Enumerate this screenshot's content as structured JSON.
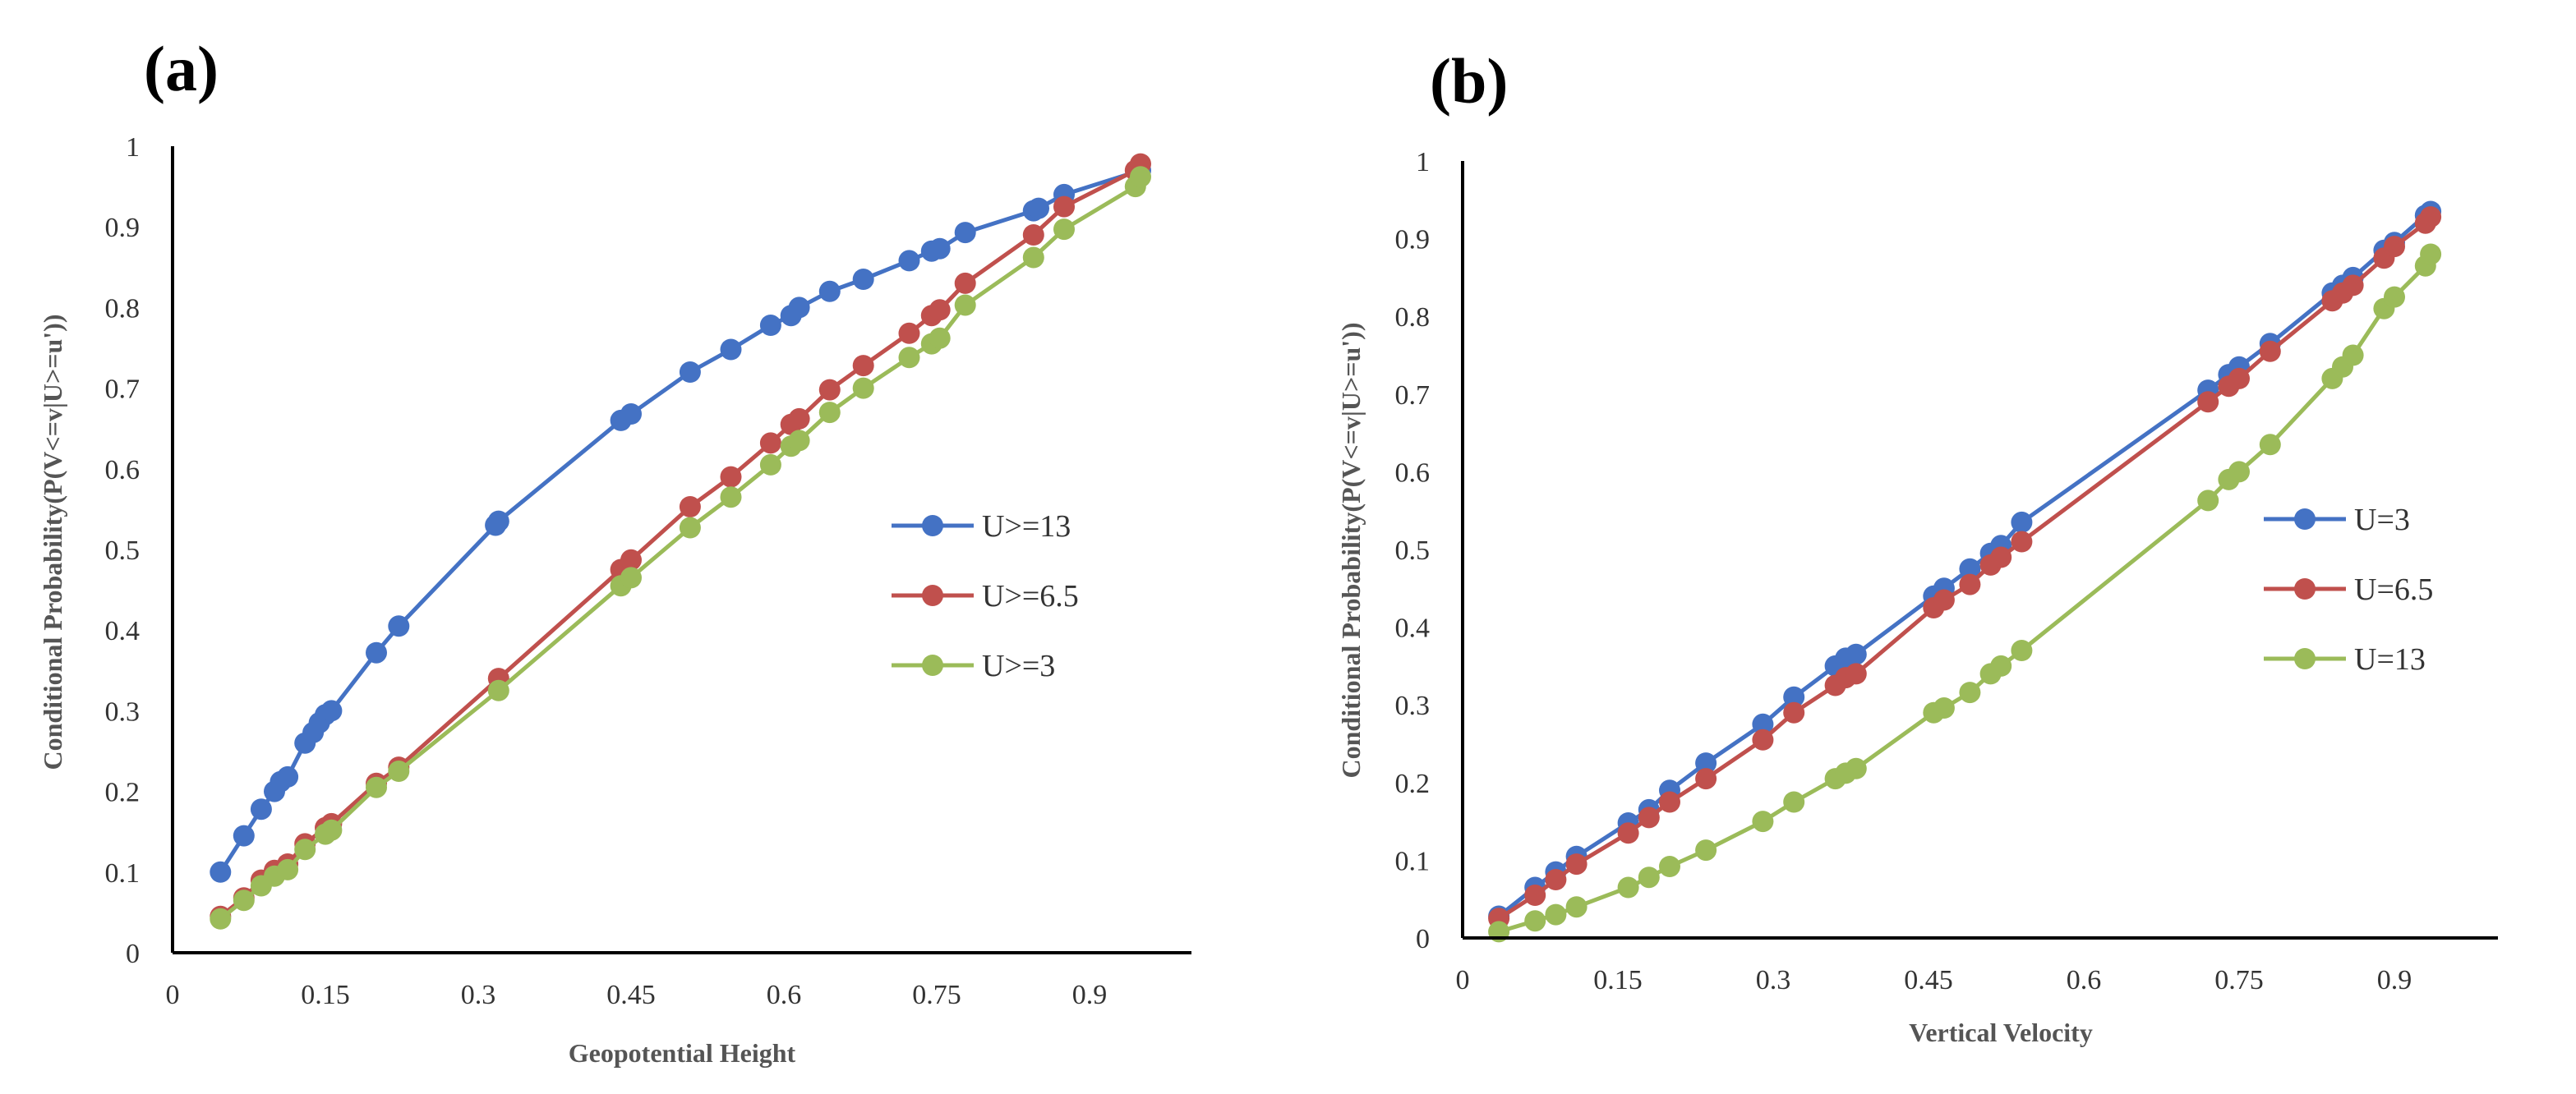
{
  "figure": {
    "panels": [
      "(a)",
      "(b)"
    ]
  },
  "chart_data": [
    {
      "type": "line",
      "panel_label": "(a)",
      "title": "",
      "xlabel": "Geopotential Height",
      "ylabel": "Conditional Probability(P(V<=v|U>=u'))",
      "xlim": [
        0,
        1.0
      ],
      "ylim": [
        0,
        1
      ],
      "xticks": [
        0,
        0.15,
        0.3,
        0.45,
        0.6,
        0.75,
        0.9
      ],
      "xtick_labels": [
        "0",
        "0.15",
        "0.3",
        "0.45",
        "0.6",
        "0.75",
        "0.9"
      ],
      "yticks": [
        0,
        0.1,
        0.2,
        0.3,
        0.4,
        0.5,
        0.6,
        0.7,
        0.8,
        0.9,
        1
      ],
      "ytick_labels": [
        "0",
        "0.1",
        "0.2",
        "0.3",
        "0.4",
        "0.5",
        "0.6",
        "0.7",
        "0.8",
        "0.9",
        "1"
      ],
      "grid": false,
      "legend_position": "right",
      "series": [
        {
          "name": "U>=13",
          "color": "#4472C4",
          "x": [
            0.047,
            0.07,
            0.087,
            0.1,
            0.106,
            0.113,
            0.13,
            0.138,
            0.144,
            0.15,
            0.156,
            0.2,
            0.222,
            0.317,
            0.32,
            0.44,
            0.45,
            0.508,
            0.548,
            0.587,
            0.607,
            0.615,
            0.645,
            0.678,
            0.723,
            0.745,
            0.753,
            0.778,
            0.845,
            0.85,
            0.875,
            0.95
          ],
          "y": [
            0.1,
            0.145,
            0.178,
            0.2,
            0.212,
            0.218,
            0.26,
            0.273,
            0.285,
            0.295,
            0.3,
            0.372,
            0.405,
            0.53,
            0.535,
            0.66,
            0.668,
            0.72,
            0.748,
            0.778,
            0.79,
            0.8,
            0.82,
            0.835,
            0.858,
            0.87,
            0.873,
            0.893,
            0.92,
            0.923,
            0.94,
            0.97
          ]
        },
        {
          "name": "U>=6.5",
          "color": "#C0504D",
          "x": [
            0.047,
            0.07,
            0.087,
            0.1,
            0.113,
            0.13,
            0.15,
            0.156,
            0.2,
            0.222,
            0.32,
            0.44,
            0.45,
            0.508,
            0.548,
            0.587,
            0.607,
            0.615,
            0.645,
            0.678,
            0.723,
            0.745,
            0.753,
            0.778,
            0.845,
            0.875,
            0.945,
            0.95
          ],
          "y": [
            0.045,
            0.068,
            0.09,
            0.102,
            0.11,
            0.135,
            0.155,
            0.16,
            0.21,
            0.23,
            0.34,
            0.475,
            0.487,
            0.553,
            0.59,
            0.632,
            0.655,
            0.662,
            0.698,
            0.728,
            0.768,
            0.79,
            0.797,
            0.83,
            0.89,
            0.925,
            0.97,
            0.978
          ]
        },
        {
          "name": "U>=3",
          "color": "#9BBB59",
          "x": [
            0.047,
            0.07,
            0.087,
            0.1,
            0.113,
            0.13,
            0.15,
            0.156,
            0.2,
            0.222,
            0.32,
            0.44,
            0.45,
            0.508,
            0.548,
            0.587,
            0.607,
            0.615,
            0.645,
            0.678,
            0.723,
            0.745,
            0.753,
            0.778,
            0.845,
            0.875,
            0.945,
            0.95
          ],
          "y": [
            0.042,
            0.065,
            0.083,
            0.095,
            0.103,
            0.128,
            0.147,
            0.152,
            0.205,
            0.225,
            0.325,
            0.455,
            0.465,
            0.527,
            0.565,
            0.605,
            0.628,
            0.635,
            0.67,
            0.7,
            0.738,
            0.755,
            0.762,
            0.803,
            0.862,
            0.897,
            0.95,
            0.962
          ]
        }
      ]
    },
    {
      "type": "line",
      "panel_label": "(b)",
      "title": "",
      "xlabel": "Vertical Velocity",
      "ylabel": "Conditional Probability(P(V<=v|U>=u'))",
      "xlim": [
        0,
        1.0
      ],
      "ylim": [
        0,
        1
      ],
      "xticks": [
        0,
        0.15,
        0.3,
        0.45,
        0.6,
        0.75,
        0.9
      ],
      "xtick_labels": [
        "0",
        "0.15",
        "0.3",
        "0.45",
        "0.6",
        "0.75",
        "0.9"
      ],
      "yticks": [
        0,
        0.1,
        0.2,
        0.3,
        0.4,
        0.5,
        0.6,
        0.7,
        0.8,
        0.9,
        1
      ],
      "ytick_labels": [
        "0",
        "0.1",
        "0.2",
        "0.3",
        "0.4",
        "0.5",
        "0.6",
        "0.7",
        "0.8",
        "0.9",
        "1"
      ],
      "grid": false,
      "legend_position": "right",
      "series": [
        {
          "name": "U=3",
          "color": "#4472C4",
          "x": [
            0.035,
            0.07,
            0.09,
            0.11,
            0.16,
            0.18,
            0.2,
            0.235,
            0.29,
            0.32,
            0.36,
            0.37,
            0.38,
            0.455,
            0.465,
            0.49,
            0.51,
            0.52,
            0.54,
            0.72,
            0.74,
            0.75,
            0.78,
            0.84,
            0.85,
            0.86,
            0.89,
            0.9,
            0.93,
            0.935
          ],
          "y": [
            0.028,
            0.065,
            0.085,
            0.105,
            0.148,
            0.165,
            0.19,
            0.225,
            0.275,
            0.31,
            0.35,
            0.36,
            0.365,
            0.44,
            0.45,
            0.475,
            0.495,
            0.505,
            0.535,
            0.705,
            0.725,
            0.735,
            0.765,
            0.83,
            0.84,
            0.85,
            0.885,
            0.895,
            0.93,
            0.935
          ]
        },
        {
          "name": "U=6.5",
          "color": "#C0504D",
          "x": [
            0.035,
            0.07,
            0.09,
            0.11,
            0.16,
            0.18,
            0.2,
            0.235,
            0.29,
            0.32,
            0.36,
            0.37,
            0.38,
            0.455,
            0.465,
            0.49,
            0.51,
            0.52,
            0.54,
            0.72,
            0.74,
            0.75,
            0.78,
            0.84,
            0.85,
            0.86,
            0.89,
            0.9,
            0.93,
            0.935
          ],
          "y": [
            0.025,
            0.055,
            0.075,
            0.095,
            0.135,
            0.155,
            0.175,
            0.205,
            0.255,
            0.29,
            0.325,
            0.335,
            0.34,
            0.425,
            0.435,
            0.455,
            0.48,
            0.49,
            0.51,
            0.69,
            0.71,
            0.72,
            0.755,
            0.82,
            0.83,
            0.84,
            0.875,
            0.89,
            0.92,
            0.928
          ]
        },
        {
          "name": "U=13",
          "color": "#9BBB59",
          "x": [
            0.035,
            0.07,
            0.09,
            0.11,
            0.16,
            0.18,
            0.2,
            0.235,
            0.29,
            0.32,
            0.36,
            0.37,
            0.38,
            0.455,
            0.465,
            0.49,
            0.51,
            0.52,
            0.54,
            0.72,
            0.74,
            0.75,
            0.78,
            0.84,
            0.85,
            0.86,
            0.89,
            0.9,
            0.93,
            0.935
          ],
          "y": [
            0.008,
            0.022,
            0.03,
            0.04,
            0.065,
            0.078,
            0.092,
            0.113,
            0.15,
            0.175,
            0.205,
            0.212,
            0.218,
            0.29,
            0.296,
            0.316,
            0.34,
            0.35,
            0.37,
            0.563,
            0.59,
            0.6,
            0.635,
            0.72,
            0.735,
            0.75,
            0.81,
            0.825,
            0.865,
            0.88
          ]
        }
      ]
    }
  ]
}
